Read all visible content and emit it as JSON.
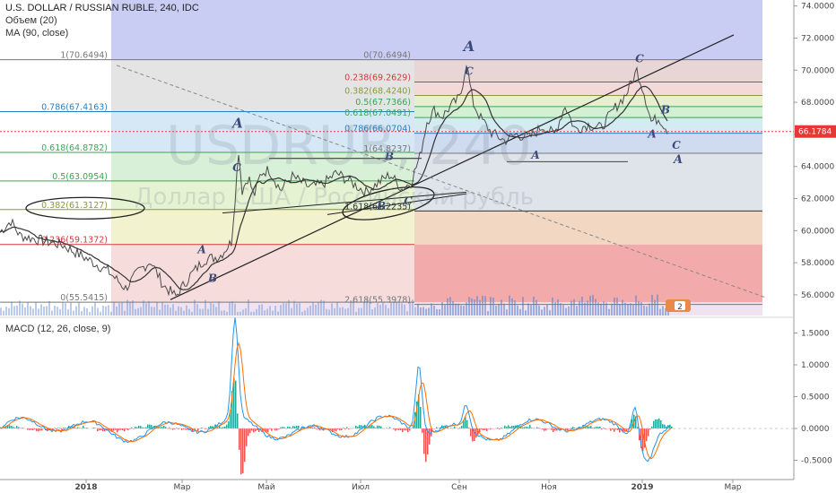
{
  "header": {
    "symbol_line": "U.S. DOLLAR / RUSSIAN RUBLE, 240, IDC",
    "volume_line": "Объем (20)",
    "ma_line": "MA (90, close)",
    "macd_line": "MACD (12, 26, close, 9)"
  },
  "watermark": {
    "ticker": "USDRUB, 240",
    "name": "Доллар США / Российский рубль"
  },
  "colors": {
    "price_line": "#4a4a4a",
    "ma_line": "#333333",
    "macd_line": "#2196f3",
    "signal_line": "#ff6d00",
    "hist_pos": "#26a69a",
    "hist_neg": "#ef5350",
    "current_price_tag": "#e53935"
  },
  "price_axis": {
    "ticks": [
      "74.0000",
      "72.0000",
      "70.0000",
      "68.0000",
      "66.0000",
      "64.0000",
      "62.0000",
      "60.0000",
      "58.0000",
      "56.0000"
    ],
    "current_price": "66.1784"
  },
  "macd_axis": {
    "ticks": [
      "1.5000",
      "1.0000",
      "0.5000",
      "0.0000",
      "-0.5000"
    ]
  },
  "time_axis": {
    "labels": [
      "2018",
      "Мар",
      "Май",
      "Июл",
      "Сен",
      "Ноя",
      "2019",
      "Мар"
    ]
  },
  "fib_left": {
    "levels": [
      {
        "label": "1(70.6494)",
        "value": 70.6494,
        "color": "#787878"
      },
      {
        "label": "0.786(67.4163)",
        "value": 67.4163,
        "color": "#2a7fc1"
      },
      {
        "label": "0.618(64.8782)",
        "value": 64.8782,
        "color": "#3aa655"
      },
      {
        "label": "0.5(63.0954)",
        "value": 63.0954,
        "color": "#3aa655"
      },
      {
        "label": "0.382(61.3127)",
        "value": 61.3127,
        "color": "#8a9a3a"
      },
      {
        "label": "0.236(59.1372)",
        "value": 59.1372,
        "color": "#d33a3a"
      },
      {
        "label": "0(55.5415)",
        "value": 55.5415,
        "color": "#787878"
      }
    ]
  },
  "fib_right": {
    "levels": [
      {
        "label": "0(70.6494)",
        "value": 70.6494,
        "color": "#787878"
      },
      {
        "label": "0.238(69.2629)",
        "value": 69.2629,
        "color": "#d33a3a"
      },
      {
        "label": "0.382(68.4240)",
        "value": 68.424,
        "color": "#8a9a3a"
      },
      {
        "label": "0.5(67.7366)",
        "value": 67.7366,
        "color": "#3aa655"
      },
      {
        "label": "0.618(67.0491)",
        "value": 67.0491,
        "color": "#3aa655"
      },
      {
        "label": "0.786(66.0704)",
        "value": 66.0704,
        "color": "#2a7fc1"
      },
      {
        "label": "1(64.8237)",
        "value": 64.8237,
        "color": "#787878"
      },
      {
        "label": "1.618(61.2235)",
        "value": 61.2235,
        "color": "#333333"
      },
      {
        "label": "2.618(55.3978)",
        "value": 55.3978,
        "color": "#787878"
      }
    ]
  },
  "waves": {
    "labels": [
      "A",
      "B",
      "C",
      "A",
      "C",
      "A",
      "B",
      "C",
      "C",
      "B",
      "A",
      "B",
      "A",
      "C",
      "A"
    ]
  },
  "badge": {
    "text": "2"
  }
}
